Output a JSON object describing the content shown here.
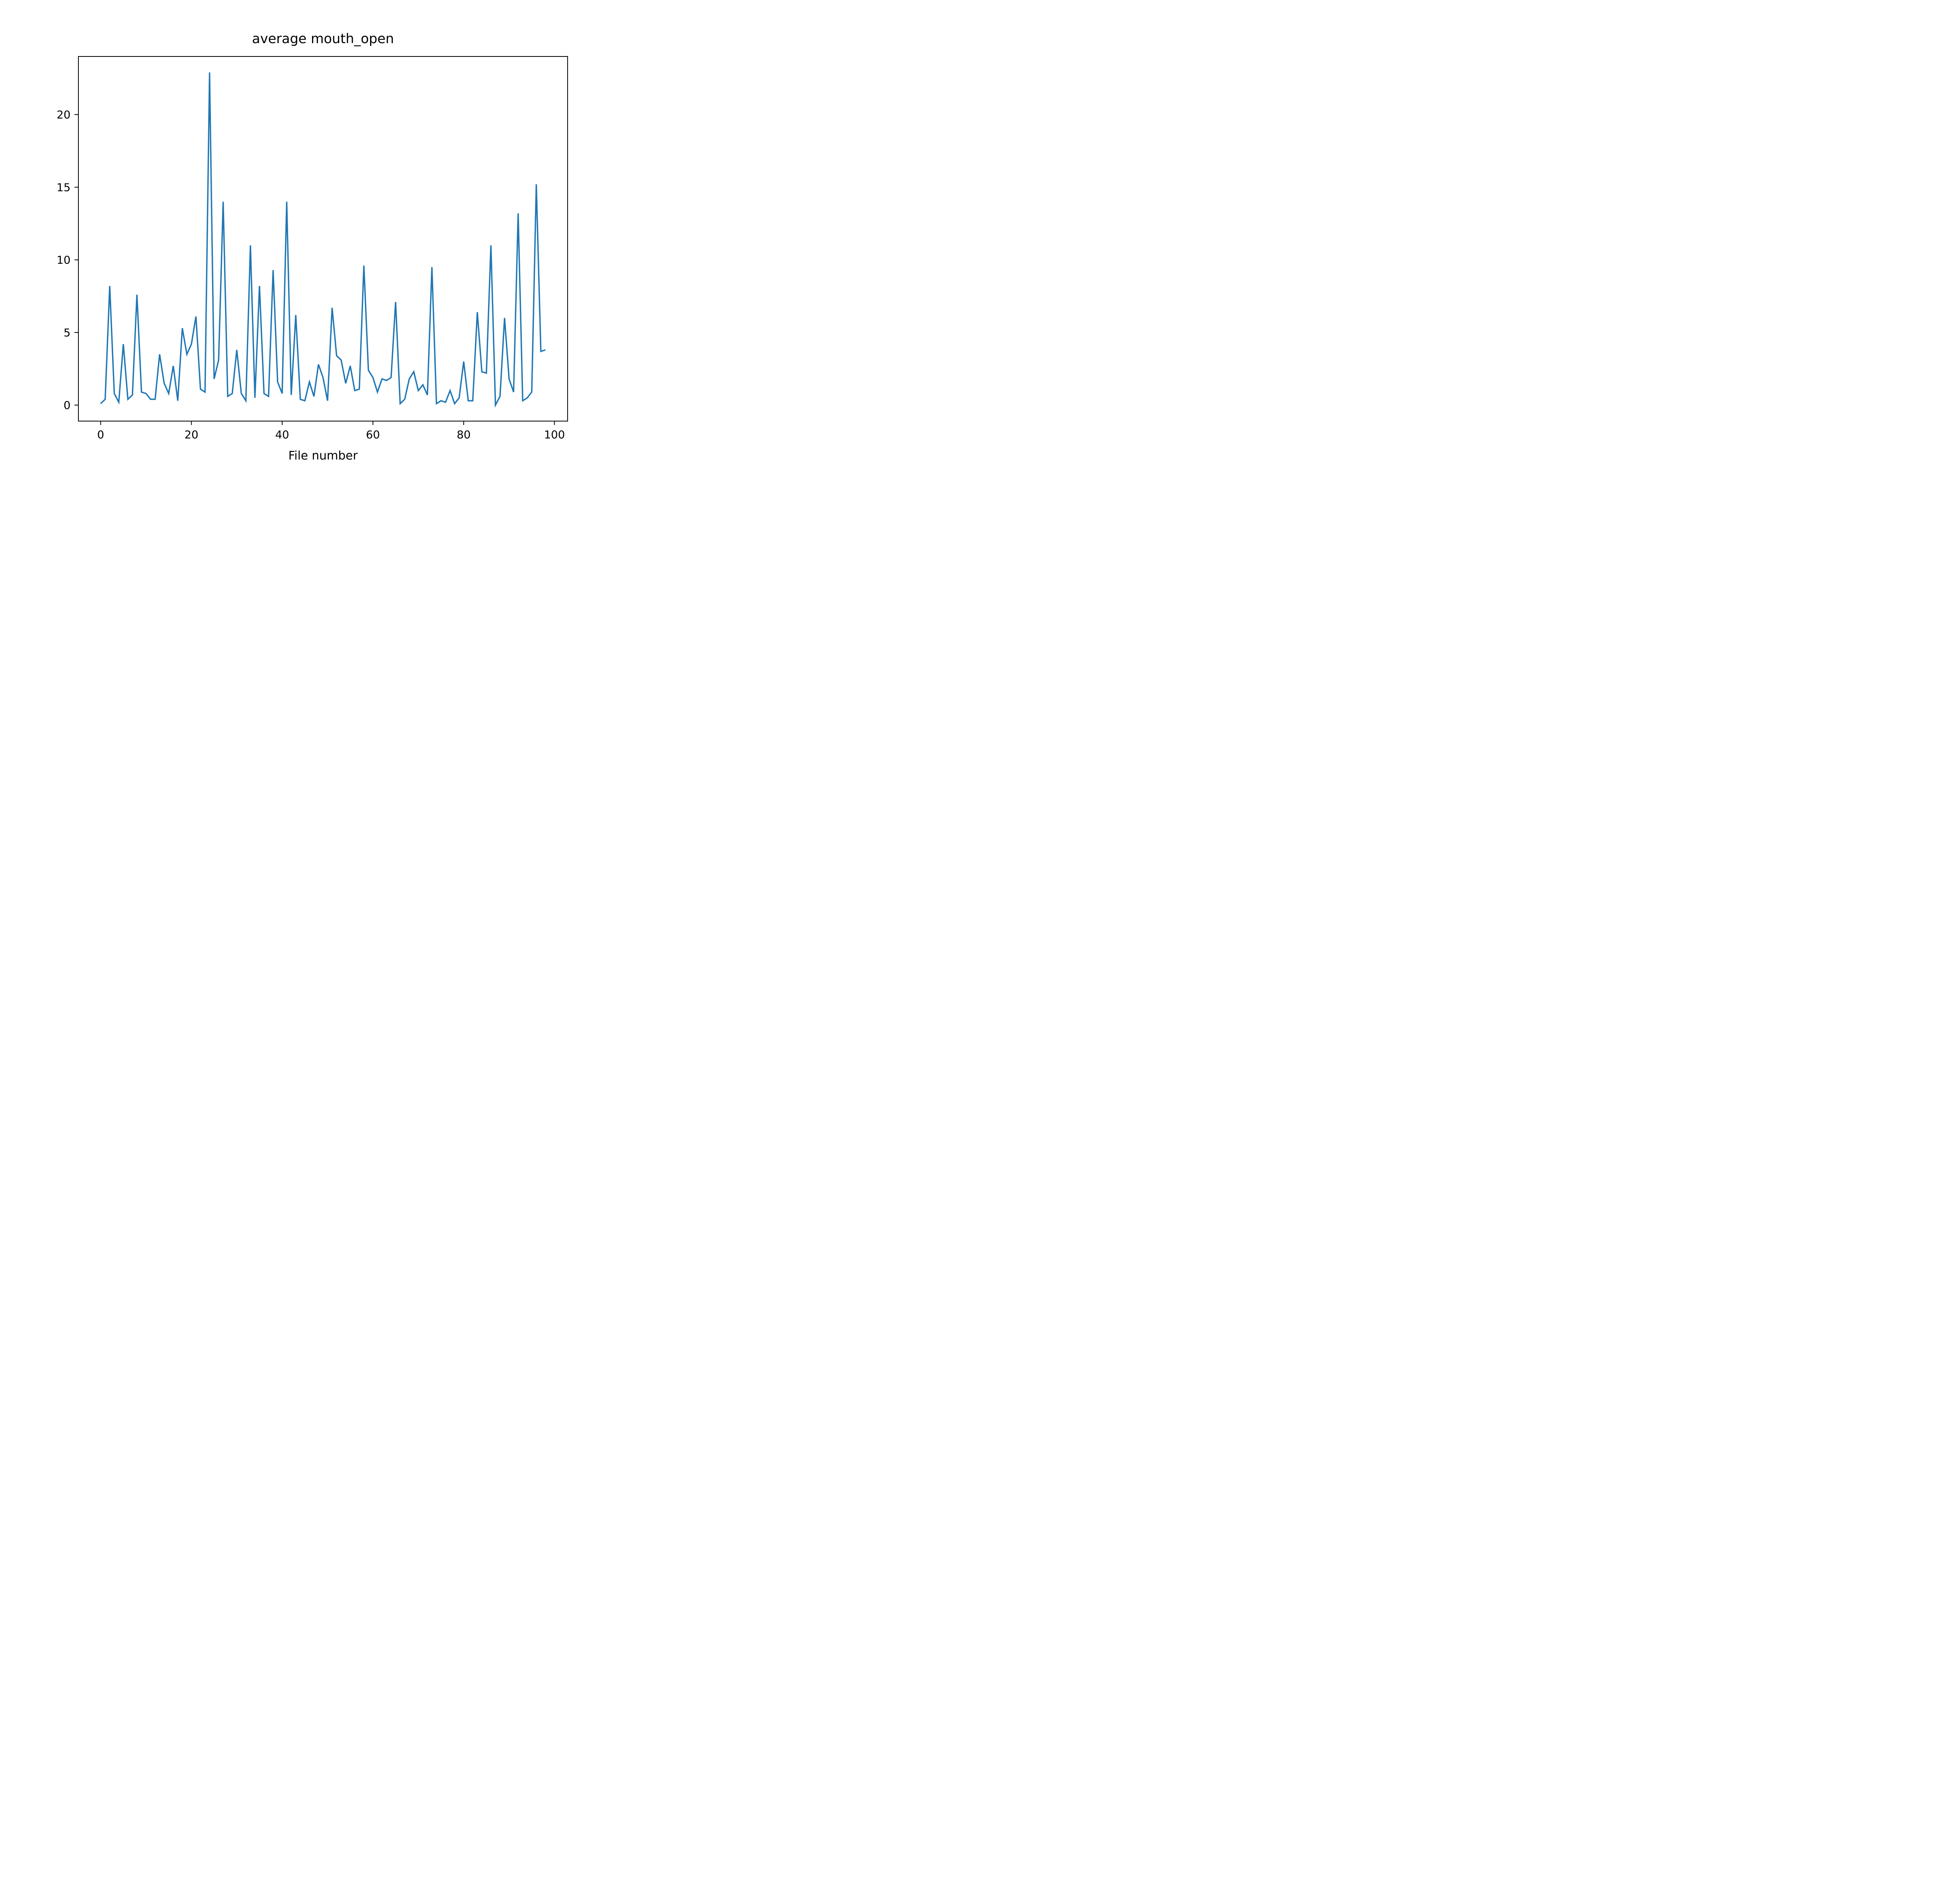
{
  "chart_data": {
    "type": "line",
    "title": "average mouth_open",
    "xlabel": "File number",
    "ylabel": "",
    "xlim": [
      -4.9,
      102.9
    ],
    "ylim": [
      -1.1,
      24.0
    ],
    "xticks": [
      0,
      20,
      40,
      60,
      80,
      100
    ],
    "yticks": [
      0,
      5,
      10,
      15,
      20
    ],
    "grid": false,
    "line_color": "#1f77b4",
    "series": [
      {
        "x": [
          0,
          1,
          2,
          3,
          4,
          5,
          6,
          7,
          8,
          9,
          10,
          11,
          12,
          13,
          14,
          15,
          16,
          17,
          18,
          19,
          20,
          21,
          22,
          23,
          24,
          25,
          26,
          27,
          28,
          29,
          30,
          31,
          32,
          33,
          34,
          35,
          36,
          37,
          38,
          39,
          40,
          41,
          42,
          43,
          44,
          45,
          46,
          47,
          48,
          49,
          50,
          51,
          52,
          53,
          54,
          55,
          56,
          57,
          58,
          59,
          60,
          61,
          62,
          63,
          64,
          65,
          66,
          67,
          68,
          69,
          70,
          71,
          72,
          73,
          74,
          75,
          76,
          77,
          78,
          79,
          80,
          81,
          82,
          83,
          84,
          85,
          86,
          87,
          88,
          89,
          90,
          91,
          92,
          93,
          94,
          95,
          96,
          97,
          98
        ],
        "values": [
          0.1,
          0.4,
          8.2,
          0.8,
          0.2,
          4.2,
          0.4,
          0.7,
          7.6,
          0.9,
          0.8,
          0.4,
          0.4,
          3.5,
          1.5,
          0.8,
          2.7,
          0.3,
          5.3,
          3.5,
          4.2,
          6.1,
          1.1,
          0.9,
          22.9,
          1.8,
          3.1,
          14.0,
          0.6,
          0.8,
          3.8,
          0.8,
          0.3,
          11.0,
          0.5,
          8.2,
          0.8,
          0.6,
          9.3,
          1.6,
          0.8,
          14.0,
          0.7,
          6.2,
          0.4,
          0.3,
          1.6,
          0.6,
          2.8,
          1.9,
          0.3,
          6.7,
          3.4,
          3.1,
          1.5,
          2.7,
          1.0,
          1.1,
          9.6,
          2.4,
          1.9,
          0.9,
          1.8,
          1.7,
          1.9,
          7.1,
          0.1,
          0.4,
          1.8,
          2.3,
          1.0,
          1.4,
          0.7,
          9.5,
          0.1,
          0.3,
          0.2,
          1.0,
          0.1,
          0.5,
          3.0,
          0.3,
          0.3,
          6.4,
          2.3,
          2.2,
          11.0,
          0.0,
          0.6,
          6.0,
          1.8,
          0.9,
          13.2,
          0.3,
          0.5,
          0.9,
          15.2,
          3.7,
          3.8
        ]
      }
    ]
  }
}
